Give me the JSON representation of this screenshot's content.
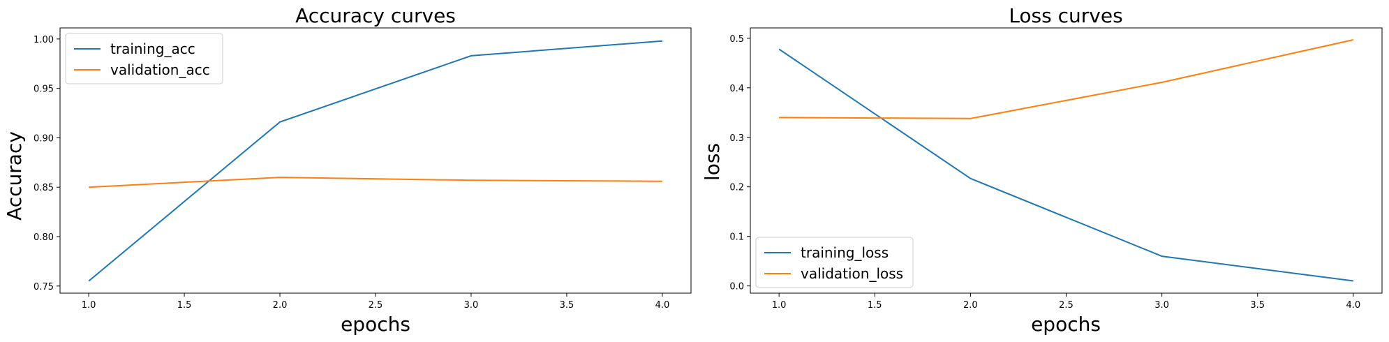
{
  "chart_data": [
    {
      "type": "line",
      "title": "Accuracy curves",
      "xlabel": "epochs",
      "ylabel": "Accuracy",
      "x": [
        1.0,
        2.0,
        3.0,
        4.0
      ],
      "xlim": [
        0.85,
        4.15
      ],
      "ylim": [
        0.7428,
        1.0112
      ],
      "xticks": [
        "1.0",
        "1.5",
        "2.0",
        "2.5",
        "3.0",
        "3.5",
        "4.0"
      ],
      "yticks": [
        "0.75",
        "0.80",
        "0.85",
        "0.90",
        "0.95",
        "1.00"
      ],
      "legend_position": "upper-left",
      "grid": false,
      "series": [
        {
          "name": "training_acc",
          "color": "#1f77b4",
          "values": [
            0.755,
            0.916,
            0.983,
            0.998
          ]
        },
        {
          "name": "validation_acc",
          "color": "#ff7f0e",
          "values": [
            0.85,
            0.86,
            0.857,
            0.856
          ]
        }
      ]
    },
    {
      "type": "line",
      "title": "Loss curves",
      "xlabel": "epochs",
      "ylabel": "loss",
      "x": [
        1.0,
        2.0,
        3.0,
        4.0
      ],
      "xlim": [
        0.85,
        4.15
      ],
      "ylim": [
        -0.0146,
        0.5209
      ],
      "xticks": [
        "1.0",
        "1.5",
        "2.0",
        "2.5",
        "3.0",
        "3.5",
        "4.0"
      ],
      "yticks": [
        "0.0",
        "0.1",
        "0.2",
        "0.3",
        "0.4",
        "0.5"
      ],
      "legend_position": "lower-left",
      "grid": false,
      "series": [
        {
          "name": "training_loss",
          "color": "#1f77b4",
          "values": [
            0.478,
            0.217,
            0.06,
            0.01
          ]
        },
        {
          "name": "validation_loss",
          "color": "#ff7f0e",
          "values": [
            0.34,
            0.338,
            0.411,
            0.497
          ]
        }
      ]
    }
  ]
}
